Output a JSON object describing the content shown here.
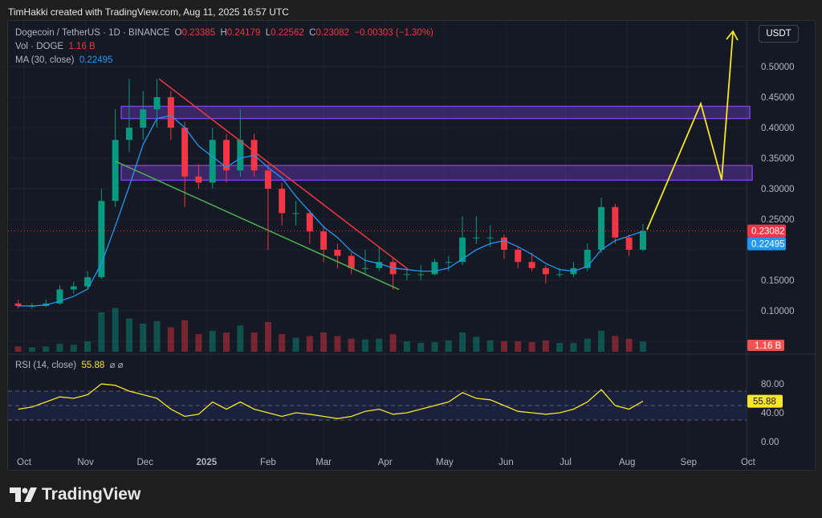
{
  "credit": "TimHakki created with TradingView.com, Aug 11, 2025 16:57 UTC",
  "legend": {
    "symbol": "Dogecoin / TetherUS · 1D · BINANCE",
    "o_label": "O",
    "o": "0.23385",
    "h_label": "H",
    "h": "0.24179",
    "l_label": "L",
    "l": "0.22562",
    "c_label": "C",
    "c": "0.23082",
    "change": "−0.00303 (−1.30%)",
    "vol_label": "Vol · DOGE",
    "vol": "1.16 B",
    "ma_label": "MA (30, close)",
    "ma": "0.22495",
    "rsi_label": "RSI (14, close)",
    "rsi": "55.88",
    "rsi_icons": "⌀ ⌀"
  },
  "currency_button": "USDT",
  "logo_text": "TradingView",
  "colors": {
    "up": "#089981",
    "down": "#f23645",
    "ma": "#2196f3",
    "rsi": "#f7e52a",
    "zone": "#7b3fe4",
    "trend_down": "#f23645",
    "trend_support": "#4caf50",
    "projection": "#f7e52a"
  },
  "chart_data": {
    "type": "candlestick",
    "price_axis": {
      "ticks": [
        "0.50000",
        "0.45000",
        "0.40000",
        "0.35000",
        "0.30000",
        "0.25000",
        "0.15000",
        "0.10000"
      ],
      "range": [
        0.08,
        0.56
      ]
    },
    "time_axis": {
      "ticks": [
        {
          "label": "Oct",
          "date": "2024-10-01"
        },
        {
          "label": "Nov",
          "date": "2024-11-01"
        },
        {
          "label": "Dec",
          "date": "2024-12-01"
        },
        {
          "label": "2025",
          "date": "2025-01-01",
          "bold": true
        },
        {
          "label": "Feb",
          "date": "2025-02-01"
        },
        {
          "label": "Mar",
          "date": "2025-03-01"
        },
        {
          "label": "Apr",
          "date": "2025-04-01"
        },
        {
          "label": "May",
          "date": "2025-05-01"
        },
        {
          "label": "Jun",
          "date": "2025-06-01"
        },
        {
          "label": "Jul",
          "date": "2025-07-01"
        },
        {
          "label": "Aug",
          "date": "2025-08-01"
        },
        {
          "label": "Sep",
          "date": "2025-09-01"
        },
        {
          "label": "Oct",
          "date": "2025-10-01"
        }
      ]
    },
    "last_price_label": "0.23082",
    "ma_label": "0.22495",
    "volume_label": "1.16 B",
    "candles_weekly": [
      [
        "2024-09-28",
        0.112,
        0.118,
        0.104,
        0.108
      ],
      [
        "2024-10-05",
        0.108,
        0.113,
        0.103,
        0.108
      ],
      [
        "2024-10-12",
        0.108,
        0.118,
        0.106,
        0.112
      ],
      [
        "2024-10-19",
        0.112,
        0.142,
        0.11,
        0.135
      ],
      [
        "2024-10-26",
        0.135,
        0.148,
        0.128,
        0.14
      ],
      [
        "2024-11-02",
        0.14,
        0.165,
        0.135,
        0.155
      ],
      [
        "2024-11-09",
        0.155,
        0.3,
        0.152,
        0.28
      ],
      [
        "2024-11-16",
        0.28,
        0.43,
        0.27,
        0.38
      ],
      [
        "2024-11-23",
        0.38,
        0.48,
        0.36,
        0.4
      ],
      [
        "2024-11-30",
        0.4,
        0.46,
        0.38,
        0.43
      ],
      [
        "2024-12-07",
        0.43,
        0.48,
        0.4,
        0.45
      ],
      [
        "2024-12-14",
        0.45,
        0.46,
        0.38,
        0.4
      ],
      [
        "2024-12-21",
        0.4,
        0.41,
        0.27,
        0.32
      ],
      [
        "2024-12-28",
        0.32,
        0.34,
        0.3,
        0.31
      ],
      [
        "2025-01-04",
        0.31,
        0.4,
        0.3,
        0.38
      ],
      [
        "2025-01-11",
        0.38,
        0.39,
        0.31,
        0.33
      ],
      [
        "2025-01-18",
        0.33,
        0.43,
        0.32,
        0.38
      ],
      [
        "2025-01-25",
        0.38,
        0.39,
        0.32,
        0.33
      ],
      [
        "2025-02-01",
        0.33,
        0.34,
        0.2,
        0.3
      ],
      [
        "2025-02-08",
        0.3,
        0.31,
        0.24,
        0.26
      ],
      [
        "2025-02-15",
        0.26,
        0.28,
        0.24,
        0.26
      ],
      [
        "2025-02-22",
        0.26,
        0.265,
        0.21,
        0.23
      ],
      [
        "2025-03-01",
        0.23,
        0.24,
        0.18,
        0.2
      ],
      [
        "2025-03-08",
        0.2,
        0.21,
        0.17,
        0.19
      ],
      [
        "2025-03-15",
        0.19,
        0.195,
        0.16,
        0.17
      ],
      [
        "2025-03-22",
        0.17,
        0.2,
        0.16,
        0.17
      ],
      [
        "2025-03-29",
        0.17,
        0.205,
        0.165,
        0.18
      ],
      [
        "2025-04-05",
        0.18,
        0.185,
        0.135,
        0.16
      ],
      [
        "2025-04-12",
        0.16,
        0.17,
        0.15,
        0.16
      ],
      [
        "2025-04-19",
        0.16,
        0.175,
        0.15,
        0.16
      ],
      [
        "2025-04-26",
        0.16,
        0.185,
        0.158,
        0.18
      ],
      [
        "2025-05-03",
        0.18,
        0.19,
        0.165,
        0.18
      ],
      [
        "2025-05-10",
        0.18,
        0.255,
        0.175,
        0.22
      ],
      [
        "2025-05-17",
        0.22,
        0.255,
        0.21,
        0.22
      ],
      [
        "2025-05-24",
        0.22,
        0.24,
        0.205,
        0.22
      ],
      [
        "2025-05-31",
        0.22,
        0.225,
        0.185,
        0.2
      ],
      [
        "2025-06-07",
        0.2,
        0.205,
        0.17,
        0.18
      ],
      [
        "2025-06-14",
        0.18,
        0.195,
        0.165,
        0.17
      ],
      [
        "2025-06-21",
        0.17,
        0.175,
        0.145,
        0.16
      ],
      [
        "2025-06-28",
        0.16,
        0.17,
        0.155,
        0.16
      ],
      [
        "2025-07-05",
        0.16,
        0.18,
        0.155,
        0.17
      ],
      [
        "2025-07-12",
        0.17,
        0.21,
        0.165,
        0.2
      ],
      [
        "2025-07-19",
        0.2,
        0.285,
        0.195,
        0.27
      ],
      [
        "2025-07-26",
        0.27,
        0.275,
        0.21,
        0.22
      ],
      [
        "2025-08-02",
        0.22,
        0.225,
        0.19,
        0.2
      ],
      [
        "2025-08-09",
        0.2,
        0.242,
        0.198,
        0.231
      ]
    ],
    "volume_b": [
      0.6,
      0.5,
      0.6,
      0.9,
      0.8,
      1.2,
      4.5,
      5.0,
      3.8,
      3.2,
      3.5,
      2.8,
      3.6,
      2.0,
      2.4,
      2.2,
      3.0,
      2.2,
      3.4,
      2.0,
      1.6,
      1.8,
      2.2,
      1.8,
      1.5,
      1.4,
      1.5,
      2.0,
      1.2,
      1.0,
      1.1,
      1.3,
      2.2,
      1.7,
      1.3,
      1.2,
      1.2,
      1.1,
      1.3,
      1.0,
      1.0,
      1.5,
      2.4,
      1.8,
      1.5,
      1.16
    ],
    "rsi": {
      "axis_ticks": [
        "80.00",
        "40.00",
        "0.00"
      ],
      "bands": [
        70,
        50,
        30
      ],
      "values": [
        45,
        48,
        55,
        62,
        60,
        65,
        80,
        78,
        70,
        65,
        60,
        45,
        35,
        38,
        55,
        45,
        55,
        45,
        40,
        35,
        40,
        38,
        35,
        32,
        35,
        42,
        45,
        38,
        40,
        45,
        50,
        55,
        68,
        60,
        58,
        50,
        42,
        40,
        38,
        40,
        45,
        55,
        72,
        50,
        45,
        56
      ],
      "last_label": "55.88"
    }
  }
}
